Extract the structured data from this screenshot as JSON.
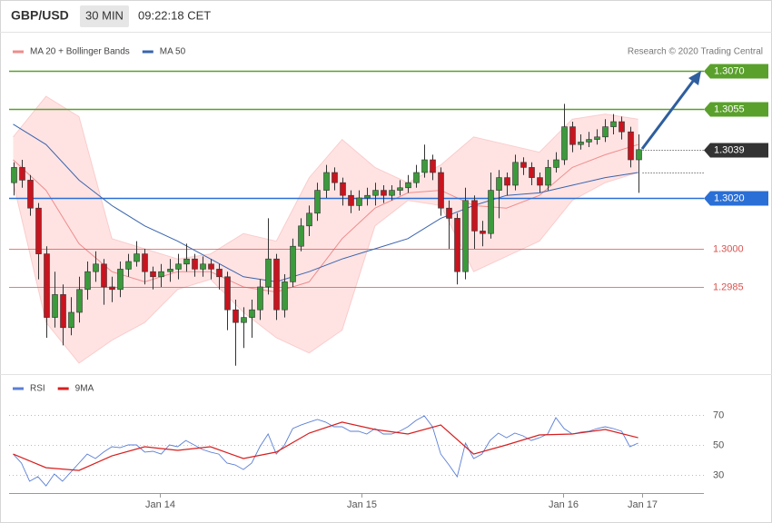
{
  "header": {
    "symbol": "GBP/USD",
    "interval": "30 MIN",
    "time": "09:22:18 CET"
  },
  "chart_data": [
    {
      "type": "candlestick",
      "annotation": "Research © 2020 Trading Central",
      "xlim": [
        -0.5,
        84
      ],
      "ylim": [
        1.295,
        1.3075
      ],
      "bands": {
        "name": "MA 20 + Bollinger Bands",
        "color": "#f08c8c",
        "fill": "#ffdede",
        "x": [
          0,
          4,
          8,
          12,
          16,
          20,
          24,
          28,
          32,
          36,
          40,
          44,
          48,
          52,
          56,
          60,
          64,
          68,
          72,
          76
        ],
        "middle": [
          1.3035,
          1.3023,
          1.3002,
          1.2991,
          1.2987,
          1.2991,
          1.2991,
          1.2985,
          1.2983,
          1.2987,
          1.3004,
          1.3016,
          1.3022,
          1.3023,
          1.3017,
          1.3016,
          1.3021,
          1.3032,
          1.3037,
          1.3041
        ],
        "upper": [
          1.3044,
          1.306,
          1.3052,
          1.3004,
          1.3,
          1.2996,
          1.2998,
          1.3006,
          1.3003,
          1.3028,
          1.3043,
          1.3032,
          1.3026,
          1.3033,
          1.3044,
          1.3041,
          1.3038,
          1.3051,
          1.3053,
          1.3051
        ],
        "lower": [
          1.3026,
          1.2971,
          1.2955,
          1.2964,
          1.2971,
          1.2984,
          1.2988,
          1.2975,
          1.2965,
          1.2959,
          1.2968,
          1.3009,
          1.3019,
          1.3017,
          1.2991,
          1.2997,
          1.3003,
          1.3019,
          1.3026,
          1.303
        ]
      },
      "series": [
        {
          "name": "MA 50",
          "color": "#3a64ad",
          "x": [
            0,
            4,
            8,
            12,
            16,
            20,
            24,
            28,
            32,
            36,
            40,
            44,
            48,
            52,
            56,
            60,
            64,
            68,
            72,
            76
          ],
          "values": [
            1.3049,
            1.3041,
            1.3027,
            1.3017,
            1.3009,
            1.3003,
            1.2996,
            1.2989,
            1.2987,
            1.2991,
            1.2996,
            1.3,
            1.3004,
            1.3012,
            1.3017,
            1.3021,
            1.3022,
            1.3025,
            1.3028,
            1.303
          ]
        }
      ],
      "candles": {
        "up_color": "#3c9a3c",
        "down_color": "#c8141e",
        "x": [
          0,
          1,
          2,
          3,
          4,
          5,
          6,
          7,
          8,
          9,
          10,
          11,
          12,
          13,
          14,
          15,
          16,
          17,
          18,
          19,
          20,
          21,
          22,
          23,
          24,
          25,
          26,
          27,
          28,
          29,
          30,
          31,
          32,
          33,
          34,
          35,
          36,
          37,
          38,
          39,
          40,
          41,
          42,
          43,
          44,
          45,
          46,
          47,
          48,
          49,
          50,
          51,
          52,
          53,
          54,
          55,
          56,
          57,
          58,
          59,
          60,
          61,
          62,
          63,
          64,
          65,
          66,
          67,
          68,
          69,
          70,
          71,
          72,
          73,
          74,
          75,
          76
        ],
        "open": [
          1.3026,
          1.3032,
          1.3027,
          1.3016,
          1.2998,
          1.2973,
          1.2982,
          1.2969,
          1.2975,
          1.2984,
          1.2991,
          1.2994,
          1.2985,
          1.2984,
          1.2992,
          1.2995,
          1.2998,
          1.2991,
          1.2989,
          1.2991,
          1.2992,
          1.2994,
          1.2996,
          1.2992,
          1.2994,
          1.2992,
          1.2989,
          1.2976,
          1.2971,
          1.2973,
          1.2976,
          1.2985,
          1.2996,
          1.2976,
          1.2987,
          1.3001,
          1.3009,
          1.3014,
          1.3023,
          1.303,
          1.3026,
          1.3021,
          1.3017,
          1.302,
          1.3021,
          1.3023,
          1.3021,
          1.3023,
          1.3024,
          1.3026,
          1.303,
          1.3035,
          1.303,
          1.3016,
          1.3012,
          1.2991,
          1.3019,
          1.3007,
          1.3006,
          1.3023,
          1.3028,
          1.3025,
          1.3034,
          1.3032,
          1.3028,
          1.3025,
          1.3032,
          1.3035,
          1.3048,
          1.3041,
          1.3042,
          1.3043,
          1.3044,
          1.3048,
          1.305,
          1.3046,
          1.3035
        ],
        "high": [
          1.3034,
          1.3035,
          1.3029,
          1.3018,
          1.3001,
          1.2991,
          1.2986,
          1.2981,
          1.2989,
          1.2995,
          1.2999,
          1.2996,
          1.2989,
          1.2995,
          1.2998,
          1.3003,
          1.3,
          1.2993,
          1.2994,
          1.2996,
          1.2998,
          1.3002,
          1.2998,
          1.2997,
          1.2996,
          1.2994,
          1.2991,
          1.298,
          1.2977,
          1.298,
          1.2988,
          1.3012,
          1.2998,
          1.299,
          1.3004,
          1.3012,
          1.3017,
          1.3026,
          1.3033,
          1.3032,
          1.3028,
          1.3023,
          1.3023,
          1.3024,
          1.3026,
          1.3025,
          1.3025,
          1.3027,
          1.3029,
          1.3033,
          1.3041,
          1.3037,
          1.3032,
          1.3019,
          1.3014,
          1.3024,
          1.3021,
          1.3011,
          1.303,
          1.3031,
          1.303,
          1.3037,
          1.3036,
          1.3034,
          1.303,
          1.3035,
          1.3038,
          1.3057,
          1.305,
          1.3045,
          1.3046,
          1.3047,
          1.3051,
          1.3053,
          1.3052,
          1.3048,
          1.3045
        ],
        "low": [
          1.3021,
          1.3024,
          1.3013,
          1.2988,
          1.2965,
          1.2969,
          1.2962,
          1.2966,
          1.2971,
          1.298,
          1.2987,
          1.2978,
          1.2979,
          1.2981,
          1.2989,
          1.2993,
          1.2986,
          1.2984,
          1.2985,
          1.2987,
          1.2988,
          1.2991,
          1.2989,
          1.2989,
          1.2988,
          1.2984,
          1.2968,
          1.2954,
          1.2961,
          1.2965,
          1.2972,
          1.2982,
          1.2972,
          1.2973,
          1.2985,
          1.2999,
          1.3005,
          1.3011,
          1.302,
          1.3023,
          1.3017,
          1.3014,
          1.3015,
          1.3017,
          1.3017,
          1.3018,
          1.3019,
          1.3021,
          1.3022,
          1.3024,
          1.3028,
          1.3027,
          1.3013,
          1.3,
          1.2986,
          1.2988,
          1.3,
          1.3001,
          1.3004,
          1.3012,
          1.3021,
          1.3023,
          1.3029,
          1.3025,
          1.3022,
          1.3023,
          1.303,
          1.3033,
          1.3038,
          1.3039,
          1.304,
          1.3041,
          1.3042,
          1.3045,
          1.3043,
          1.3032,
          1.3022
        ],
        "close": [
          1.3032,
          1.3027,
          1.3016,
          1.2998,
          1.2973,
          1.2982,
          1.2969,
          1.2975,
          1.2984,
          1.2991,
          1.2994,
          1.2985,
          1.2984,
          1.2992,
          1.2995,
          1.2998,
          1.2991,
          1.2989,
          1.2991,
          1.2992,
          1.2994,
          1.2996,
          1.2992,
          1.2994,
          1.2992,
          1.2989,
          1.2976,
          1.2971,
          1.2973,
          1.2976,
          1.2985,
          1.2996,
          1.2976,
          1.2987,
          1.3001,
          1.3009,
          1.3014,
          1.3023,
          1.303,
          1.3026,
          1.3021,
          1.3017,
          1.302,
          1.3021,
          1.3023,
          1.3021,
          1.3023,
          1.3024,
          1.3026,
          1.303,
          1.3035,
          1.303,
          1.3016,
          1.3012,
          1.2991,
          1.3019,
          1.3007,
          1.3006,
          1.3023,
          1.3028,
          1.3025,
          1.3034,
          1.3032,
          1.3028,
          1.3025,
          1.3032,
          1.3035,
          1.3048,
          1.3041,
          1.3042,
          1.3043,
          1.3044,
          1.3048,
          1.305,
          1.3046,
          1.3035,
          1.3039
        ]
      },
      "levels": [
        {
          "value": 1.307,
          "label": "1.3070",
          "color": "#5aa02c",
          "style": "box"
        },
        {
          "value": 1.3055,
          "label": "1.3055",
          "color": "#5aa02c",
          "style": "box"
        },
        {
          "value": 1.3039,
          "label": "1.3039",
          "color": "#333333",
          "style": "dotted-box"
        },
        {
          "value": 1.302,
          "label": "1.3020",
          "color": "#2a6fd6",
          "style": "box"
        },
        {
          "value": 1.3,
          "label": "1.3000",
          "color": "#d9534f",
          "style": "text"
        },
        {
          "value": 1.2985,
          "label": "1.2985",
          "color": "#d9534f",
          "style": "text"
        }
      ]
    },
    {
      "type": "line",
      "xlim": [
        -0.5,
        84
      ],
      "ylim": [
        17,
        80
      ],
      "yticks": [
        30,
        50,
        70
      ],
      "grid": true,
      "xticks": [
        {
          "value": 17.8,
          "label": "Jan 14"
        },
        {
          "value": 42.4,
          "label": "Jan 15"
        },
        {
          "value": 66.9,
          "label": "Jan 16"
        },
        {
          "value": 76.5,
          "label": "Jan 17"
        }
      ],
      "series": [
        {
          "name": "RSI",
          "color": "#5b7fd6",
          "x": [
            0,
            1,
            2,
            3,
            4,
            5,
            6,
            7,
            8,
            9,
            10,
            11,
            12,
            13,
            14,
            15,
            16,
            17,
            18,
            19,
            20,
            21,
            22,
            23,
            24,
            25,
            26,
            27,
            28,
            29,
            30,
            31,
            32,
            33,
            34,
            35,
            36,
            37,
            38,
            39,
            40,
            41,
            42,
            43,
            44,
            45,
            46,
            47,
            48,
            49,
            50,
            51,
            52,
            53,
            54,
            55,
            56,
            57,
            58,
            59,
            60,
            61,
            62,
            63,
            64,
            65,
            66,
            67,
            68,
            69,
            70,
            71,
            72,
            73,
            74,
            75,
            76
          ],
          "values": [
            43.9,
            37.9,
            25.8,
            28.8,
            22.7,
            30.6,
            25.8,
            31.8,
            37.9,
            43.9,
            40.9,
            45.2,
            48.8,
            48.2,
            50,
            50,
            45.2,
            45.8,
            43.9,
            50,
            48.8,
            53,
            50,
            47,
            45.2,
            43.9,
            37.9,
            36.7,
            33.6,
            37.9,
            48.8,
            57.3,
            43.9,
            50,
            60.9,
            63.3,
            65.2,
            67,
            65.2,
            62.1,
            62.1,
            59.1,
            59.1,
            57.3,
            60.9,
            57.3,
            57.3,
            59.1,
            62.1,
            66.4,
            69.4,
            62.1,
            43.9,
            36.7,
            28.8,
            51.2,
            40.9,
            43.9,
            53,
            57.9,
            54.8,
            57.9,
            56.1,
            53,
            54.8,
            57.3,
            68.2,
            60.9,
            57.3,
            58.5,
            59.1,
            60.9,
            62.1,
            60.9,
            59.1,
            48.8,
            51.2
          ]
        },
        {
          "name": "9MA",
          "color": "#d81e1e",
          "x": [
            0,
            4,
            8,
            12,
            16,
            20,
            24,
            28,
            32,
            36,
            40,
            44,
            48,
            52,
            56,
            60,
            64,
            68,
            72,
            76
          ],
          "values": [
            43.9,
            34.8,
            33,
            42.7,
            48.8,
            46.4,
            48.8,
            40.9,
            45.2,
            57.9,
            65.2,
            60.3,
            57.3,
            63.3,
            43.9,
            50,
            56.7,
            57.3,
            60.3,
            54.8
          ]
        }
      ]
    }
  ]
}
